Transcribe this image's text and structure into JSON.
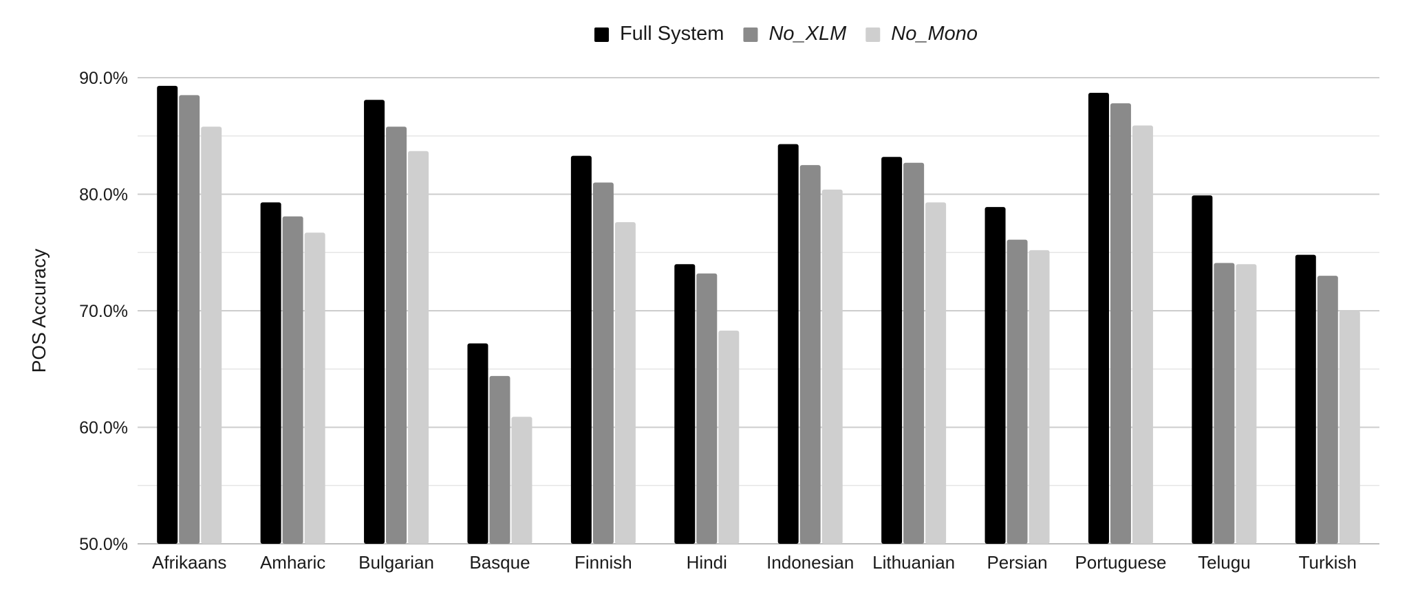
{
  "chart_data": {
    "type": "bar",
    "title": "",
    "xlabel": "",
    "ylabel": "POS Accuracy",
    "ylim": [
      50,
      90
    ],
    "y_ticks": [
      50,
      60,
      70,
      80,
      90
    ],
    "y_tick_labels": [
      "50.0%",
      "60.0%",
      "70.0%",
      "80.0%",
      "90.0%"
    ],
    "minor_gridlines": true,
    "legend_position": "top-center",
    "categories": [
      "Afrikaans",
      "Amharic",
      "Bulgarian",
      "Basque",
      "Finnish",
      "Hindi",
      "Indonesian",
      "Lithuanian",
      "Persian",
      "Portuguese",
      "Telugu",
      "Turkish"
    ],
    "series": [
      {
        "name": "Full System",
        "italic": false,
        "color": "#000000",
        "values": [
          89.3,
          79.3,
          88.1,
          67.2,
          83.3,
          74.0,
          84.3,
          83.2,
          78.9,
          88.7,
          79.9,
          74.8
        ]
      },
      {
        "name": "No_XLM",
        "italic": true,
        "color": "#8a8a8a",
        "values": [
          88.5,
          78.1,
          85.8,
          64.4,
          81.0,
          73.2,
          82.5,
          82.7,
          76.1,
          87.8,
          74.1,
          73.0
        ]
      },
      {
        "name": "No_Mono",
        "italic": true,
        "color": "#cfcfcf",
        "values": [
          85.8,
          76.7,
          83.7,
          60.9,
          77.6,
          68.3,
          80.4,
          79.3,
          75.2,
          85.9,
          74.0,
          70.0
        ]
      }
    ]
  }
}
